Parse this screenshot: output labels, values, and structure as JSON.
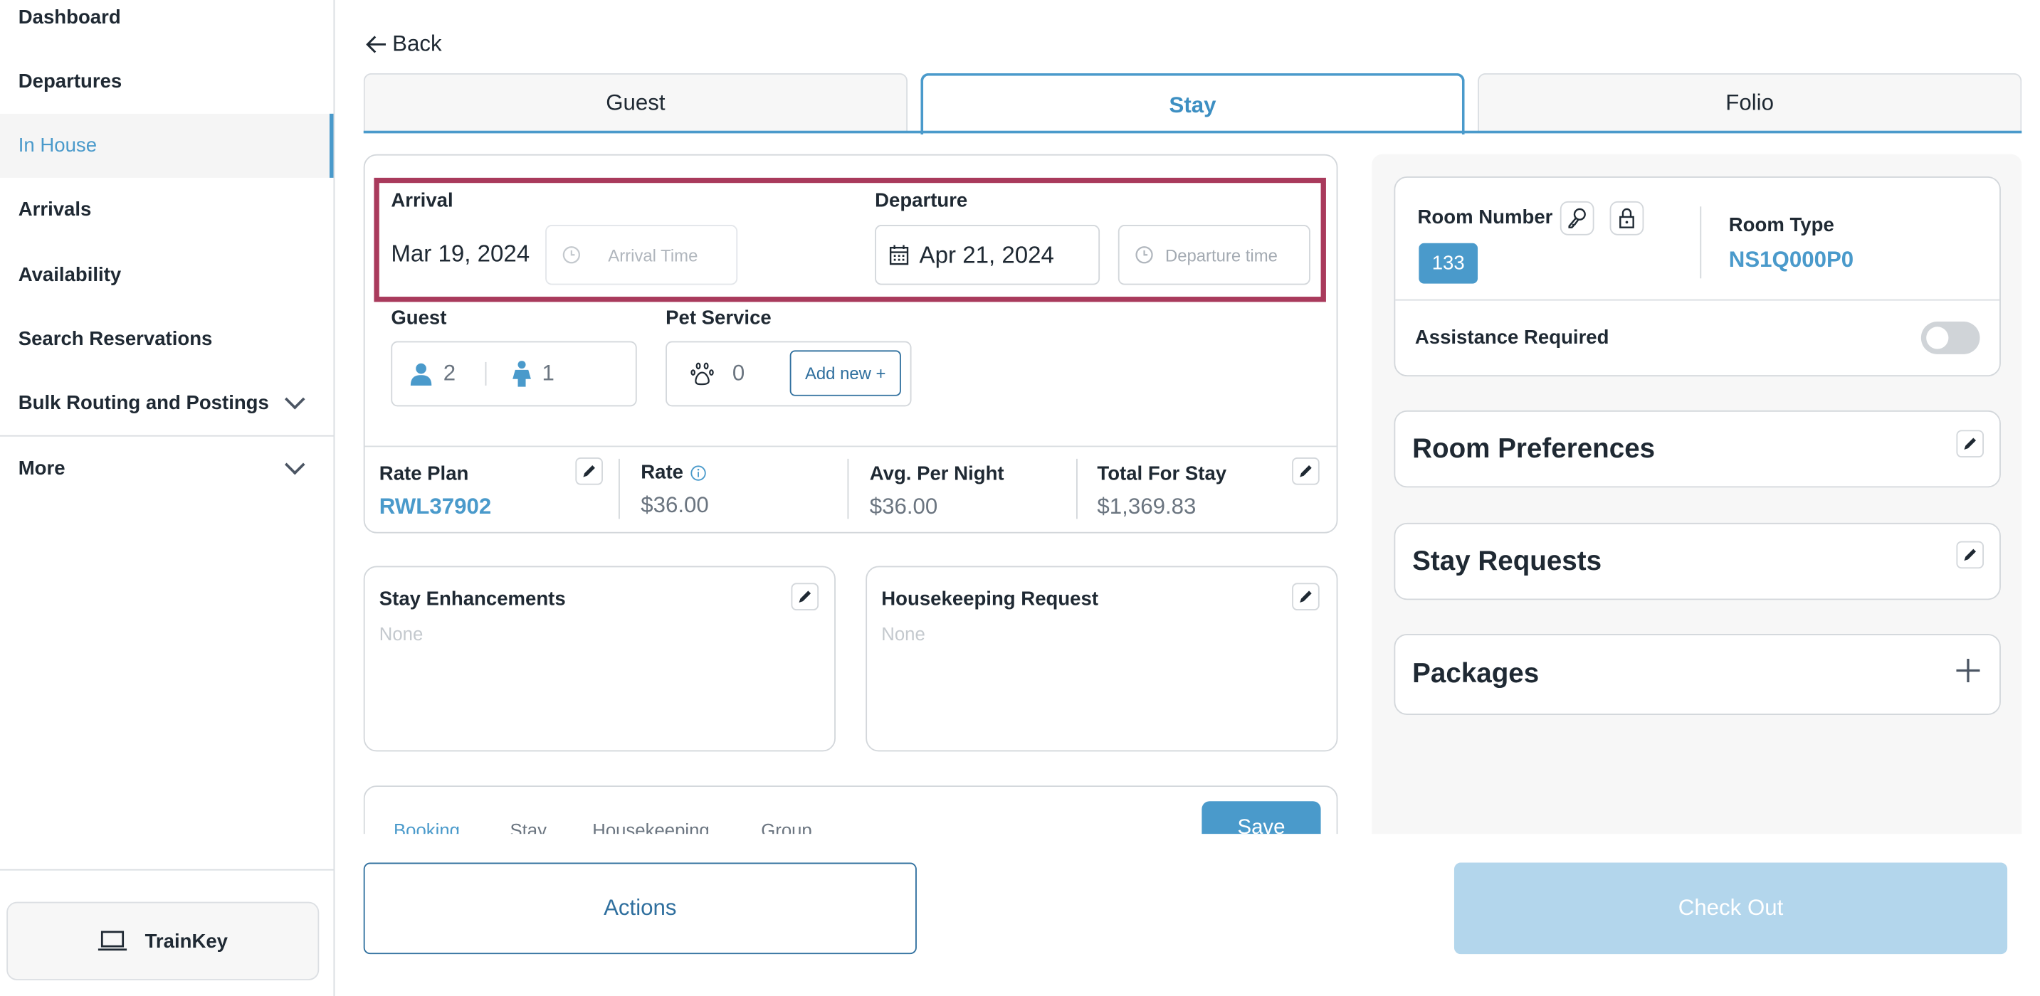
{
  "sidebar": {
    "items": [
      {
        "label": "Dashboard"
      },
      {
        "label": "Departures"
      },
      {
        "label": "In House",
        "active": true
      },
      {
        "label": "Arrivals"
      },
      {
        "label": "Availability"
      },
      {
        "label": "Search Reservations"
      },
      {
        "label": "Bulk Routing and Postings",
        "expandable": true
      },
      {
        "label": "More",
        "expandable": true
      }
    ],
    "trainkey": "TrainKey"
  },
  "back": "Back",
  "tabs": [
    {
      "label": "Guest"
    },
    {
      "label": "Stay",
      "active": true
    },
    {
      "label": "Folio"
    }
  ],
  "stay": {
    "arrival": {
      "label": "Arrival",
      "date": "Mar 19, 2024",
      "time_placeholder": "Arrival Time"
    },
    "departure": {
      "label": "Departure",
      "date": "Apr 21, 2024",
      "time_placeholder": "Departure time"
    },
    "guest": {
      "label": "Guest",
      "adults": "2",
      "children": "1"
    },
    "pet": {
      "label": "Pet Service",
      "count": "0",
      "add": "Add new +"
    },
    "rate": {
      "plan_label": "Rate Plan",
      "plan": "RWL37902",
      "rate_label": "Rate",
      "rate": "$36.00",
      "avg_label": "Avg. Per Night",
      "avg": "$36.00",
      "total_label": "Total For Stay",
      "total": "$1,369.83"
    },
    "enhancements": {
      "label": "Stay Enhancements",
      "value": "None"
    },
    "housekeeping": {
      "label": "Housekeeping Request",
      "value": "None"
    },
    "subtabs": [
      {
        "label": "Booking",
        "active": true
      },
      {
        "label": "Stay"
      },
      {
        "label": "Housekeeping"
      },
      {
        "label": "Group"
      }
    ],
    "save": "Save"
  },
  "room": {
    "number_label": "Room Number",
    "number": "133",
    "type_label": "Room Type",
    "type": "NS1Q000P0",
    "assistance_label": "Assistance Required",
    "assistance_on": false
  },
  "panels": [
    {
      "label": "Room Preferences",
      "icon": "pencil-icon"
    },
    {
      "label": "Stay Requests",
      "icon": "pencil-icon"
    },
    {
      "label": "Packages",
      "icon": "plus-icon"
    }
  ],
  "footer": {
    "actions": "Actions",
    "checkout": "Check Out"
  },
  "colors": {
    "accent": "#4a9acb",
    "highlight": "#a93a5c",
    "checkout_disabled": "#b3d6ec"
  }
}
